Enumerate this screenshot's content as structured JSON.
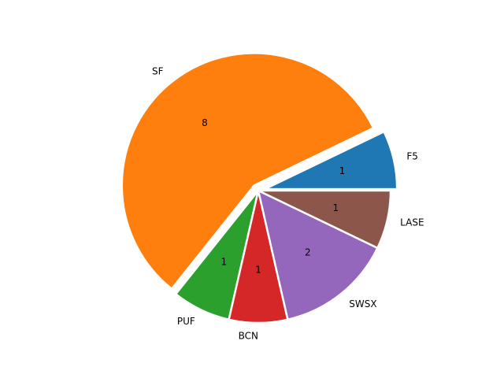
{
  "chart_data": {
    "type": "pie",
    "title": "",
    "slices": [
      {
        "label": "F5",
        "value": 1,
        "value_label": "1",
        "color": "#1f77b4",
        "explode": true
      },
      {
        "label": "SF",
        "value": 8,
        "value_label": "8",
        "color": "#ff7f0e",
        "explode": true
      },
      {
        "label": "PUF",
        "value": 1,
        "value_label": "1",
        "color": "#2ca02c",
        "explode": false
      },
      {
        "label": "BCN",
        "value": 1,
        "value_label": "1",
        "color": "#d62728",
        "explode": false
      },
      {
        "label": "SWSX",
        "value": 2,
        "value_label": "2",
        "color": "#9467bd",
        "explode": false
      },
      {
        "label": "LASE",
        "value": 1,
        "value_label": "1",
        "color": "#8c564b",
        "explode": false
      }
    ],
    "start_angle_deg": 0,
    "direction": "counterclockwise",
    "wedge_edge_color": "#ffffff"
  }
}
